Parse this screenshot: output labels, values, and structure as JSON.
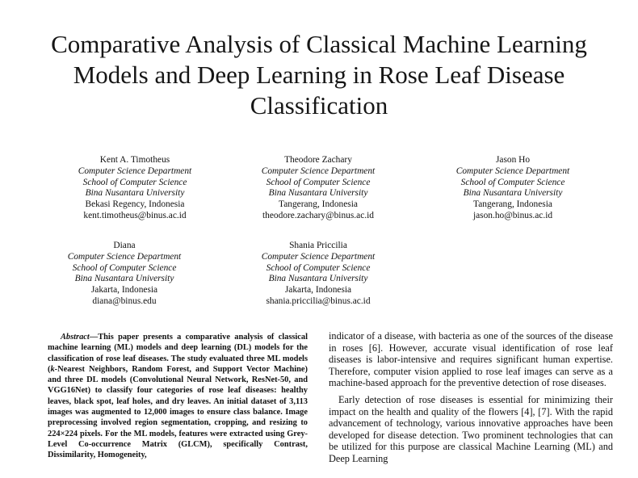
{
  "paper": {
    "title": "Comparative Analysis of Classical Machine Learning Models and Deep Learning in Rose Leaf Disease Classification",
    "authors": [
      {
        "name": "Kent A. Timotheus",
        "department": "Computer Science Department",
        "school": "School of Computer Science",
        "university": "Bina Nusantara University",
        "location": "Bekasi Regency, Indonesia",
        "email": "kent.timotheus@binus.ac.id"
      },
      {
        "name": "Theodore Zachary",
        "department": "Computer Science Department",
        "school": "School of Computer Science",
        "university": "Bina Nusantara University",
        "location": "Tangerang, Indonesia",
        "email": "theodore.zachary@binus.ac.id"
      },
      {
        "name": "Jason Ho",
        "department": "Computer Science Department",
        "school": "School of Computer Science",
        "university": "Bina Nusantara University",
        "location": "Tangerang, Indonesia",
        "email": "jason.ho@binus.ac.id"
      },
      {
        "name": "Diana",
        "department": "Computer Science Department",
        "school": "School of Computer Science",
        "university": "Bina Nusantara University",
        "location": "Jakarta, Indonesia",
        "email": "diana@binus.edu"
      },
      {
        "name": "Shania Priccilia",
        "department": "Computer Science Department",
        "school": "School of Computer Science",
        "university": "Bina Nusantara University",
        "location": "Jakarta, Indonesia",
        "email": "shania.priccilia@binus.ac.id"
      }
    ],
    "abstract": {
      "lead": "Abstract",
      "dash": "—",
      "t1": "This paper presents a comparative analysis of classical machine learning (ML) models and deep learning (DL) models for the classification of rose leaf diseases. The study evaluated three ML models (",
      "k": "k",
      "t2": "-Nearest Neighbors, Random Forest, and Support Vector Machine) and three DL models (Convolutional Neural Network, ResNet-50, and VGG16Net) to classify four categories of rose leaf diseases: healthy leaves, black spot, leaf holes, and dry leaves. An initial dataset of 3,113 images was augmented to 12,000 images to ensure class balance. Image preprocessing involved region segmentation, cropping, and resizing to 224×224 pixels. For the ML models, features were extracted using Grey-Level Co-occurrence Matrix (GLCM), specifically Contrast, Dissimilarity, Homogeneity,"
    },
    "body": {
      "p1": "indicator of a disease, with bacteria as one of the sources of the disease in roses [6]. However, accurate visual identification of rose leaf diseases is labor-intensive and requires significant human expertise. Therefore, computer vision applied to rose leaf images can serve as a machine-based approach for the preventive detection of rose diseases.",
      "p2": "Early detection of rose diseases is essential for minimizing their impact on the health and quality of the flowers [4], [7]. With the rapid advancement of technology, various innovative approaches have been developed for disease detection. Two prominent technologies that can be utilized for this purpose are classical Machine Learning (ML) and Deep Learning"
    }
  }
}
